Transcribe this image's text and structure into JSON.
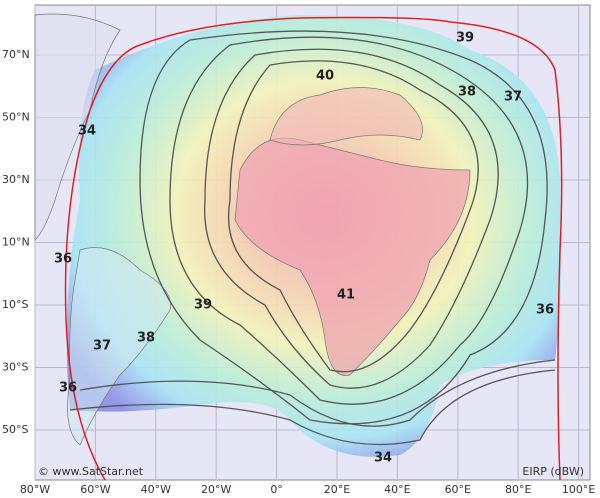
{
  "credit": "© www.SatStar.net",
  "unit_label": "EIRP (dBW)",
  "lon_labels": [
    "80°W",
    "60°W",
    "40°W",
    "20°W",
    "0°",
    "20°E",
    "40°E",
    "60°E",
    "80°E",
    "100°E"
  ],
  "lat_labels": [
    "70°N",
    "50°N",
    "30°N",
    "10°N",
    "10°S",
    "30°S",
    "50°S"
  ],
  "contour_labels": [
    "39",
    "40",
    "38",
    "37",
    "34",
    "36",
    "39",
    "41",
    "36",
    "38",
    "37",
    "36",
    "34"
  ]
}
